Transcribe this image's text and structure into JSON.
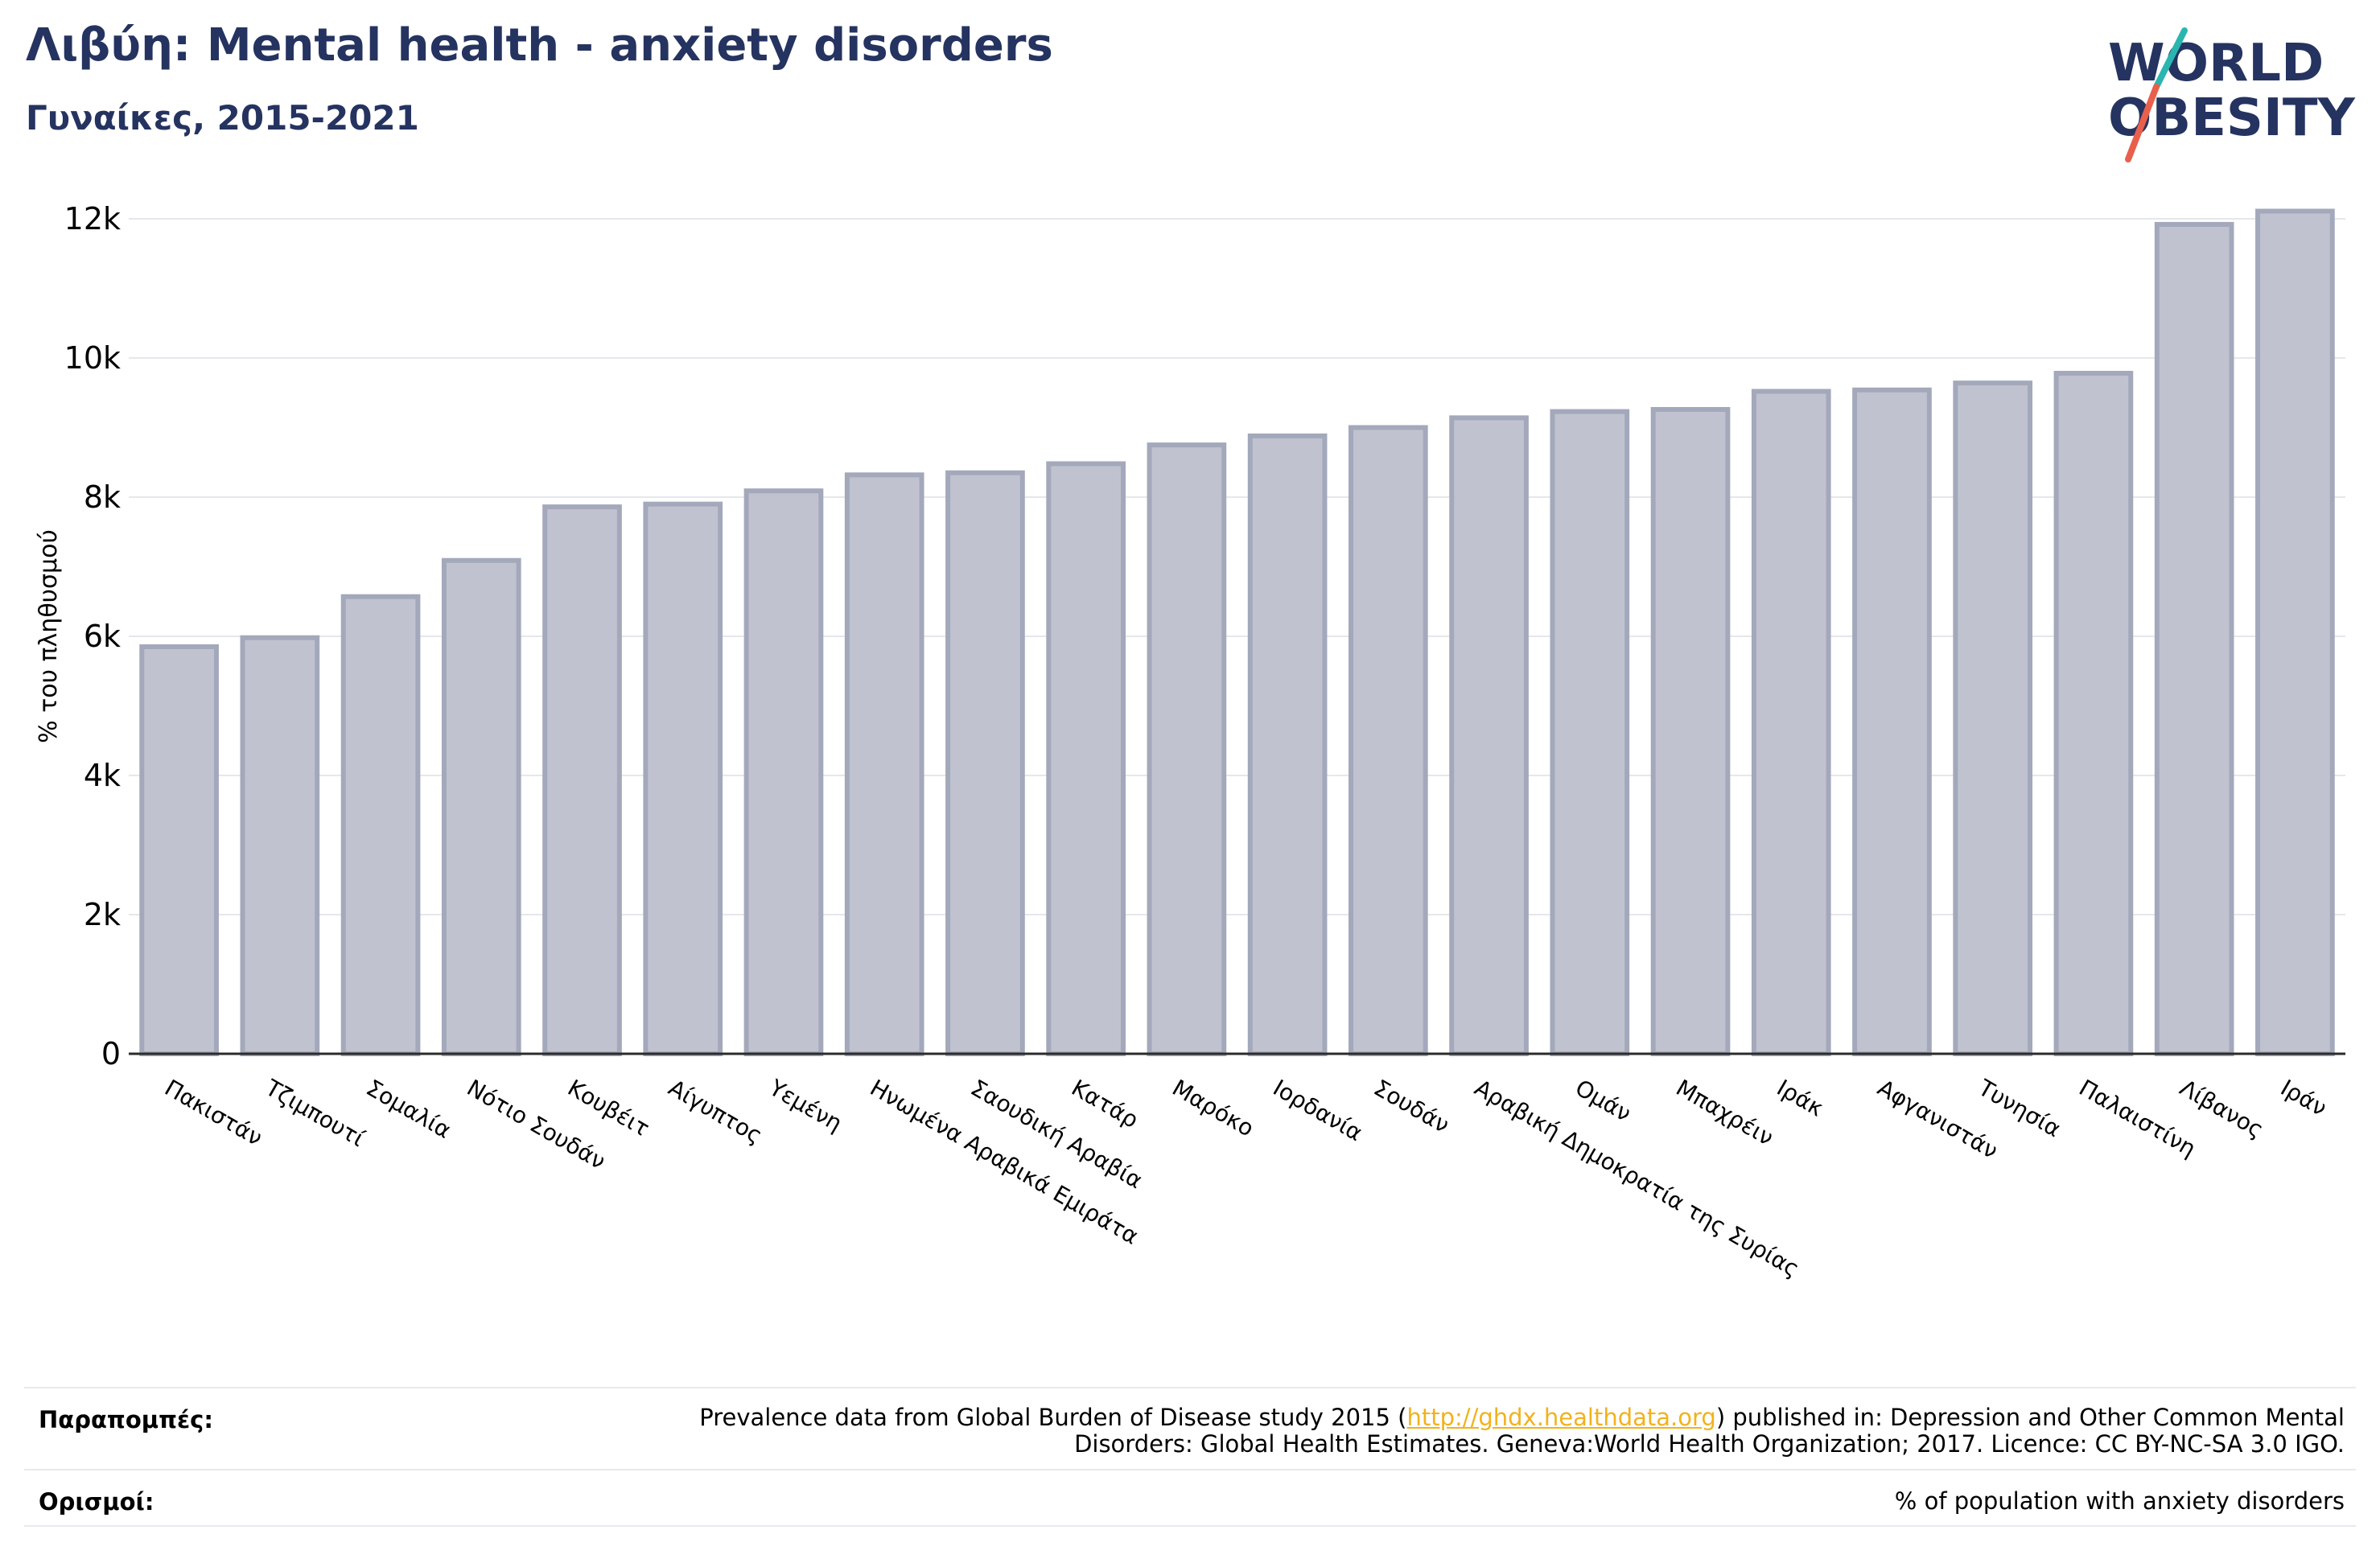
{
  "header": {
    "title": "Λιβύη: Mental health - anxiety disorders",
    "subtitle": "Γυναίκες, 2015-2021"
  },
  "logo": {
    "line1": "WORLD",
    "line2": "OBESITY",
    "colors": {
      "text": "#253360",
      "slash_top": "#2bb5b0",
      "slash_bottom": "#e8604c"
    }
  },
  "chart_data": {
    "type": "bar",
    "title": "Λιβύη: Mental health - anxiety disorders",
    "subtitle": "Γυναίκες, 2015-2021",
    "xlabel": "",
    "ylabel": "% του πληθυσμού",
    "ylim": [
      0,
      12000
    ],
    "yticks": [
      0,
      2000,
      4000,
      6000,
      8000,
      10000,
      12000
    ],
    "ytick_labels": [
      "0",
      "2k",
      "4k",
      "6k",
      "8k",
      "10k",
      "12k"
    ],
    "grid": true,
    "legend": "none",
    "bar_color": "#c0c3cf",
    "bar_edge_color": "#a3a8bb",
    "categories": [
      "Πακιστάν",
      "Τζιμπουτί",
      "Σομαλία",
      "Νότιο Σουδάν",
      "Κουβέιτ",
      "Αίγυπτος",
      "Υεμένη",
      "Ηνωμένα Αραβικά Εμιράτα",
      "Σαουδική Αραβία",
      "Κατάρ",
      "Μαρόκο",
      "Ιορδανία",
      "Σουδάν",
      "Αραβική Δημοκρατία της Συρίας",
      "Ομάν",
      "Μπαχρέιν",
      "Ιράκ",
      "Αφγανιστάν",
      "Τυνησία",
      "Παλαιστίνη",
      "Λίβανος",
      "Ιράν"
    ],
    "values": [
      5850,
      5980,
      6570,
      7090,
      7860,
      7900,
      8090,
      8320,
      8350,
      8480,
      8750,
      8880,
      9000,
      9140,
      9230,
      9260,
      9520,
      9540,
      9640,
      9780,
      11920,
      12110
    ]
  },
  "footer": {
    "references_label": "Παραπομπές:",
    "references_text_before": "Prevalence data from Global Burden of Disease study 2015 (",
    "references_link": "http://ghdx.healthdata.org",
    "references_text_after": ") published in: Depression and Other Common Mental Disorders: Global Health Estimates. Geneva:World Health Organization; 2017. Licence: CC BY-NC-SA 3.0 IGO.",
    "definitions_label": "Ορισμοί:",
    "definitions_text": "% of population with anxiety disorders"
  }
}
